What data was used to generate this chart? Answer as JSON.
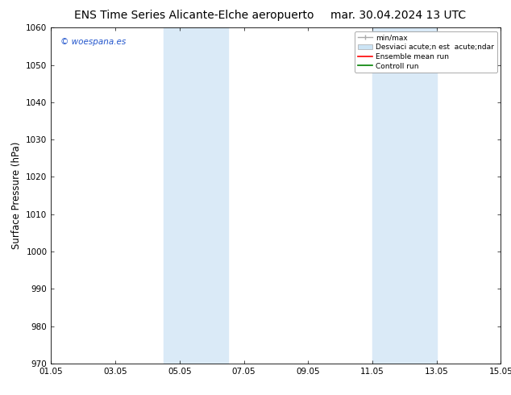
{
  "title_left": "ENS Time Series Alicante-Elche aeropuerto",
  "title_right": "mar. 30.04.2024 13 UTC",
  "ylabel": "Surface Pressure (hPa)",
  "xlim_left": 0,
  "xlim_right": 14,
  "ylim_bottom": 970,
  "ylim_top": 1060,
  "yticks": [
    970,
    980,
    990,
    1000,
    1010,
    1020,
    1030,
    1040,
    1050,
    1060
  ],
  "xtick_labels": [
    "01.05",
    "03.05",
    "05.05",
    "07.05",
    "09.05",
    "11.05",
    "13.05",
    "15.05"
  ],
  "xtick_positions": [
    0,
    2,
    4,
    6,
    8,
    10,
    12,
    14
  ],
  "shaded_bands": [
    {
      "xmin": 3.5,
      "xmax": 5.5
    },
    {
      "xmin": 10.0,
      "xmax": 12.0
    }
  ],
  "shaded_color": "#daeaf7",
  "watermark_text": "© woespana.es",
  "watermark_color": "#2255cc",
  "bg_color": "#ffffff",
  "grid_color": "#cccccc",
  "title_fontsize": 10,
  "tick_fontsize": 7.5,
  "ylabel_fontsize": 8.5,
  "legend_label_1": "min/max",
  "legend_label_2": "Desviaci acute;n est  acute;ndar",
  "legend_label_3": "Ensemble mean run",
  "legend_label_4": "Controll run",
  "legend_color_1": "#aaaaaa",
  "legend_color_2": "#cce4f5",
  "legend_color_3": "#ff0000",
  "legend_color_4": "#008000"
}
